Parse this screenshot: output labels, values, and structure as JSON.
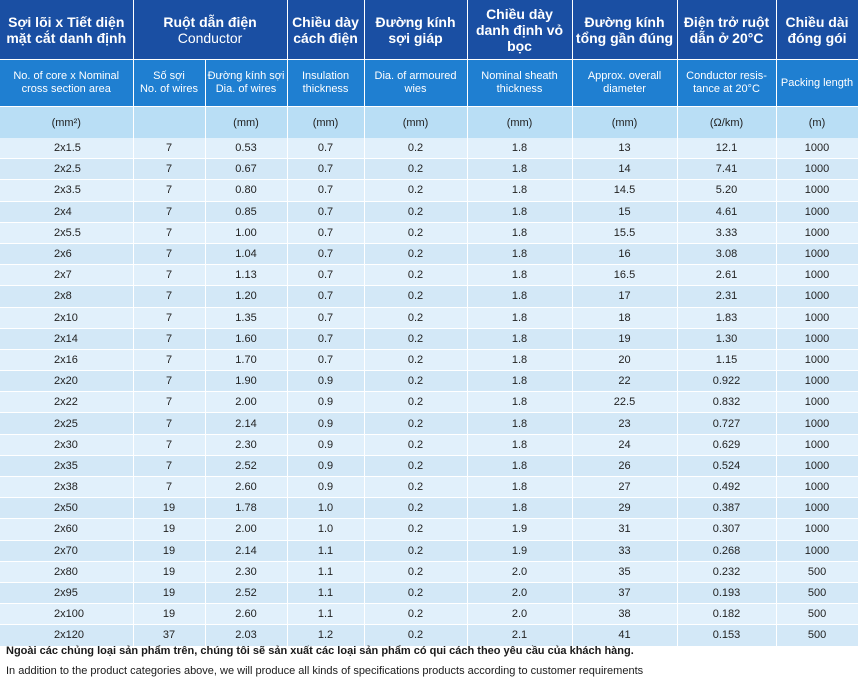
{
  "headers_vn": {
    "core_section": "Sợi lõi x Tiết diện mặt cắt danh định",
    "conductor": "Ruột dẫn điện",
    "conductor_en": "Conductor",
    "insulation": "Chiều dày cách điện",
    "armour": "Đường kính sợi giáp",
    "sheath": "Chiều dày danh định vỏ bọc",
    "overall": "Đường kính tổng gần đúng",
    "resistance": "Điện trở ruột dẫn ở 20°C",
    "packing": "Chiều dài đóng gói"
  },
  "headers_en": {
    "core_section": "No. of core x Nominal cross section area",
    "no_wires_vn": "Số sợi",
    "no_wires_en": "No. of wires",
    "dia_wires_vn": "Đường kính sợi",
    "dia_wires_en": "Dia. of wires",
    "insulation": "Insulation thickness",
    "armour": "Dia. of armoured wies",
    "sheath": "Nominal sheath thickness",
    "overall": "Approx. overall diameter",
    "resistance": "Conductor resis-tance at 20°C",
    "packing": "Packing length"
  },
  "units": {
    "core_section": "(mm²)",
    "no_wires": "",
    "dia_wires": "(mm)",
    "insulation": "(mm)",
    "armour": "(mm)",
    "sheath": "(mm)",
    "overall": "(mm)",
    "resistance": "(Ω/km)",
    "packing": "(m)"
  },
  "rows": [
    [
      "2x1.5",
      "7",
      "0.53",
      "0.7",
      "0.2",
      "1.8",
      "13",
      "12.1",
      "1000"
    ],
    [
      "2x2.5",
      "7",
      "0.67",
      "0.7",
      "0.2",
      "1.8",
      "14",
      "7.41",
      "1000"
    ],
    [
      "2x3.5",
      "7",
      "0.80",
      "0.7",
      "0.2",
      "1.8",
      "14.5",
      "5.20",
      "1000"
    ],
    [
      "2x4",
      "7",
      "0.85",
      "0.7",
      "0.2",
      "1.8",
      "15",
      "4.61",
      "1000"
    ],
    [
      "2x5.5",
      "7",
      "1.00",
      "0.7",
      "0.2",
      "1.8",
      "15.5",
      "3.33",
      "1000"
    ],
    [
      "2x6",
      "7",
      "1.04",
      "0.7",
      "0.2",
      "1.8",
      "16",
      "3.08",
      "1000"
    ],
    [
      "2x7",
      "7",
      "1.13",
      "0.7",
      "0.2",
      "1.8",
      "16.5",
      "2.61",
      "1000"
    ],
    [
      "2x8",
      "7",
      "1.20",
      "0.7",
      "0.2",
      "1.8",
      "17",
      "2.31",
      "1000"
    ],
    [
      "2x10",
      "7",
      "1.35",
      "0.7",
      "0.2",
      "1.8",
      "18",
      "1.83",
      "1000"
    ],
    [
      "2x14",
      "7",
      "1.60",
      "0.7",
      "0.2",
      "1.8",
      "19",
      "1.30",
      "1000"
    ],
    [
      "2x16",
      "7",
      "1.70",
      "0.7",
      "0.2",
      "1.8",
      "20",
      "1.15",
      "1000"
    ],
    [
      "2x20",
      "7",
      "1.90",
      "0.9",
      "0.2",
      "1.8",
      "22",
      "0.922",
      "1000"
    ],
    [
      "2x22",
      "7",
      "2.00",
      "0.9",
      "0.2",
      "1.8",
      "22.5",
      "0.832",
      "1000"
    ],
    [
      "2x25",
      "7",
      "2.14",
      "0.9",
      "0.2",
      "1.8",
      "23",
      "0.727",
      "1000"
    ],
    [
      "2x30",
      "7",
      "2.30",
      "0.9",
      "0.2",
      "1.8",
      "24",
      "0.629",
      "1000"
    ],
    [
      "2x35",
      "7",
      "2.52",
      "0.9",
      "0.2",
      "1.8",
      "26",
      "0.524",
      "1000"
    ],
    [
      "2x38",
      "7",
      "2.60",
      "0.9",
      "0.2",
      "1.8",
      "27",
      "0.492",
      "1000"
    ],
    [
      "2x50",
      "19",
      "1.78",
      "1.0",
      "0.2",
      "1.8",
      "29",
      "0.387",
      "1000"
    ],
    [
      "2x60",
      "19",
      "2.00",
      "1.0",
      "0.2",
      "1.9",
      "31",
      "0.307",
      "1000"
    ],
    [
      "2x70",
      "19",
      "2.14",
      "1.1",
      "0.2",
      "1.9",
      "33",
      "0.268",
      "1000"
    ],
    [
      "2x80",
      "19",
      "2.30",
      "1.1",
      "0.2",
      "2.0",
      "35",
      "0.232",
      "500"
    ],
    [
      "2x95",
      "19",
      "2.52",
      "1.1",
      "0.2",
      "2.0",
      "37",
      "0.193",
      "500"
    ],
    [
      "2x100",
      "19",
      "2.60",
      "1.1",
      "0.2",
      "2.0",
      "38",
      "0.182",
      "500"
    ],
    [
      "2x120",
      "37",
      "2.03",
      "1.2",
      "0.2",
      "2.1",
      "41",
      "0.153",
      "500"
    ]
  ],
  "notes": {
    "vn": "Ngoài các chủng loại sản phẩm trên, chúng tôi sẽ sản xuất các loại sản phẩm có qui cách theo yêu cầu của khách hàng.",
    "en": "In addition to the product categories above, we will produce all kinds of specifications products according to customer requirements"
  },
  "colors": {
    "header_dark": "#1a4fa3",
    "header_mid": "#1f7fd1",
    "header_unit": "#b9def5",
    "row_light": "#e1f0fb",
    "row_alt": "#d3e8f7"
  }
}
